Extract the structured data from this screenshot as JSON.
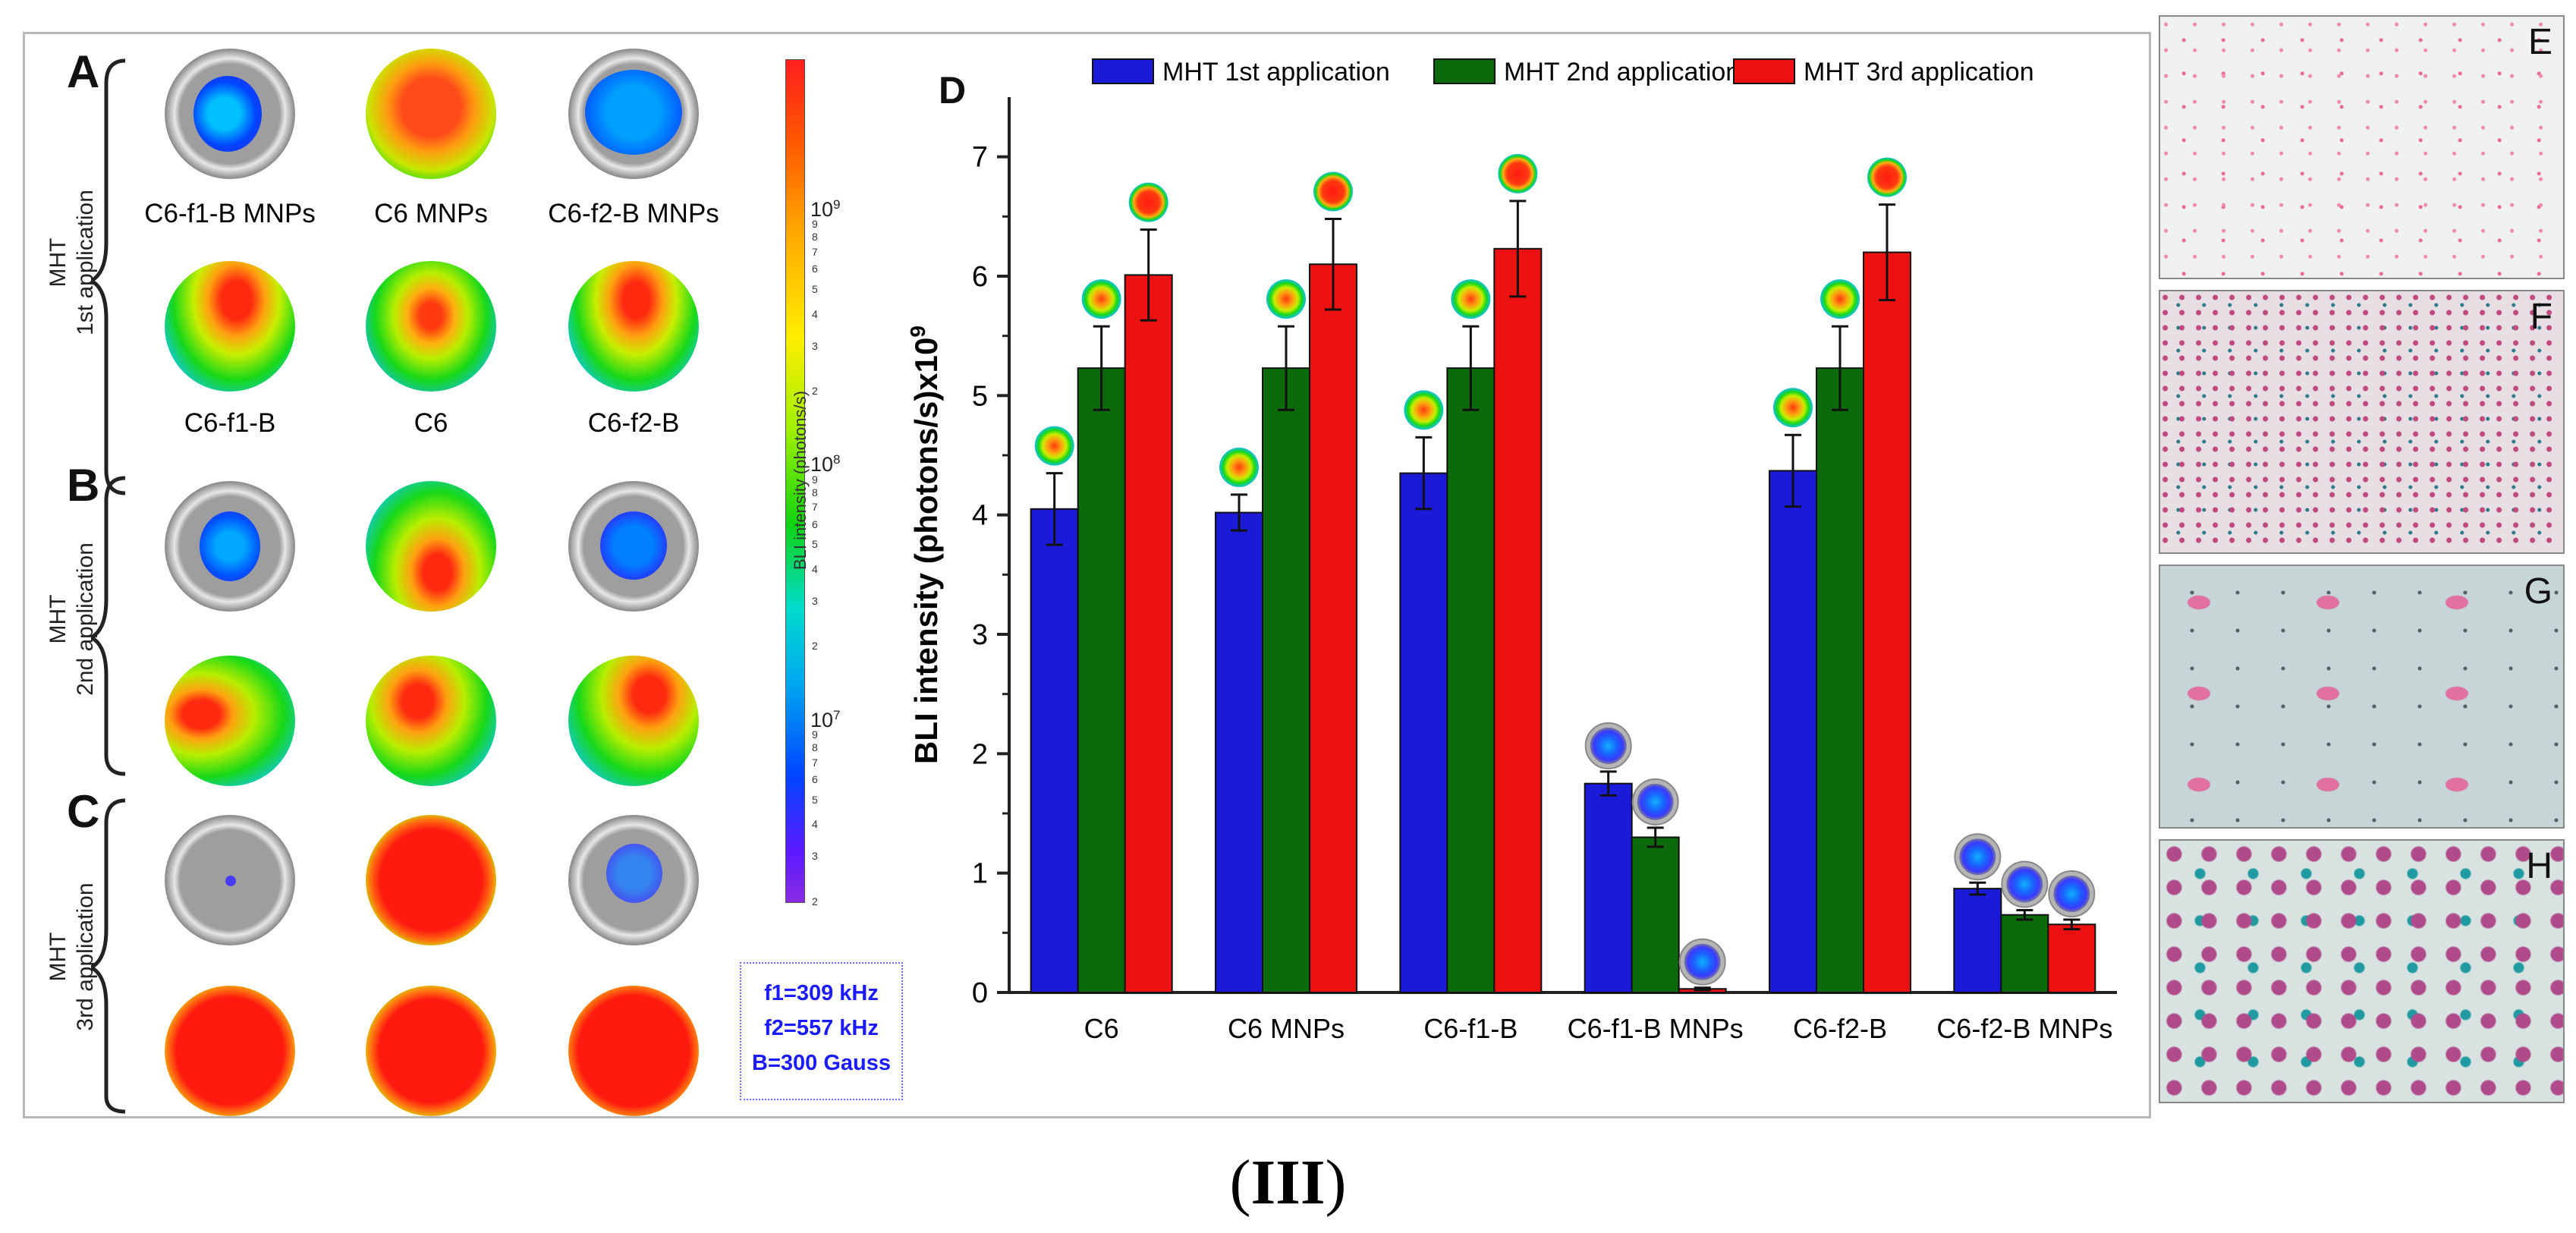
{
  "figure_caption": {
    "open": "(",
    "roman": "III",
    "close": ")"
  },
  "panels": {
    "A": "A",
    "B": "B",
    "C": "C",
    "D": "D",
    "E": "E",
    "F": "F",
    "G": "G",
    "H": "H"
  },
  "side_labels": {
    "first": [
      "MHT",
      "1st application"
    ],
    "second": [
      "MHT",
      "2nd application"
    ],
    "third": [
      "MHT",
      "3rd application"
    ]
  },
  "dish_labels": {
    "row1": [
      "C6-f1-B MNPs",
      "C6 MNPs",
      "C6-f2-B MNPs"
    ],
    "row2": [
      "C6-f1-B",
      "C6",
      "C6-f2-B"
    ]
  },
  "colorbar": {
    "title": "BLI intensity (photons/s)",
    "major_ticks": [
      {
        "label": "10",
        "exp": "9",
        "value": 1000000000.0
      },
      {
        "label": "10",
        "exp": "8",
        "value": 100000000.0
      },
      {
        "label": "10",
        "exp": "7",
        "value": 10000000.0
      }
    ],
    "minor_ticks": [
      "9",
      "8",
      "7",
      "6",
      "5",
      "4",
      "3",
      "2"
    ],
    "range_log": [
      6.3,
      9.6
    ]
  },
  "freq_box": [
    "f1=309 kHz",
    "f2=557 kHz",
    "B=300 Gauss"
  ],
  "colors": {
    "series1": "#1a1ad8",
    "series2": "#0b6b0b",
    "series3": "#ee1111"
  },
  "chart_data": {
    "type": "bar",
    "title": "",
    "xlabel": "",
    "ylabel": "BLI intensity (photons/s)x10",
    "ylabel_exp": "9",
    "ylim": [
      0,
      7.5
    ],
    "yticks": [
      0,
      1,
      2,
      3,
      4,
      5,
      6,
      7
    ],
    "categories": [
      "C6",
      "C6 MNPs",
      "C6-f1-B",
      "C6-f1-B MNPs",
      "C6-f2-B",
      "C6-f2-B MNPs"
    ],
    "series": [
      {
        "name": "MHT 1st application",
        "values": [
          4.05,
          4.02,
          4.35,
          1.75,
          4.37,
          0.87
        ],
        "errors": [
          0.3,
          0.15,
          0.3,
          0.1,
          0.3,
          0.05
        ]
      },
      {
        "name": "MHT 2nd application",
        "values": [
          5.23,
          5.23,
          5.23,
          1.3,
          5.23,
          0.65
        ],
        "errors": [
          0.35,
          0.35,
          0.35,
          0.08,
          0.35,
          0.04
        ]
      },
      {
        "name": "MHT 3rd application",
        "values": [
          6.01,
          6.1,
          6.23,
          0.03,
          6.2,
          0.57
        ],
        "errors": [
          0.38,
          0.38,
          0.4,
          0.01,
          0.4,
          0.04
        ]
      }
    ],
    "legend_position": "top"
  }
}
